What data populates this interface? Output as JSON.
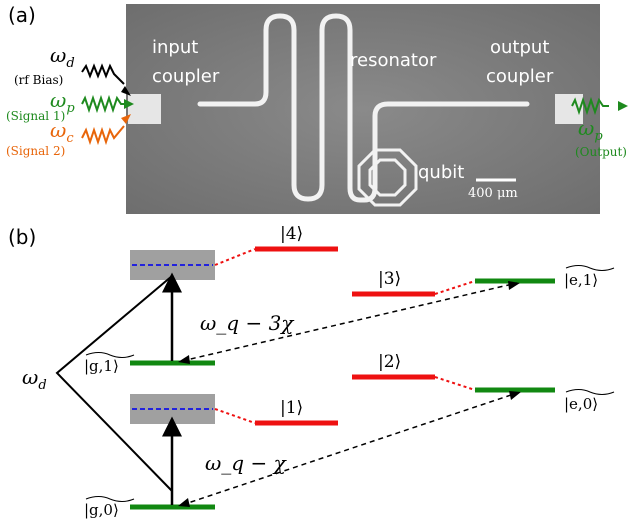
{
  "panel_a": {
    "label": "(a)",
    "chip_labels": {
      "input_coupler_line1": "input",
      "input_coupler_line2": "coupler",
      "resonator": "resonator",
      "output_coupler_line1": "output",
      "output_coupler_line2": "coupler",
      "qubit": "qubit"
    },
    "scale_bar_text": "400 μm",
    "inputs": [
      {
        "symbol": "ω",
        "subscript": "d",
        "description": "(rf Bias)",
        "color": "#000000"
      },
      {
        "symbol": "ω",
        "subscript": "p",
        "description": "(Signal 1)",
        "color": "#1e8a1e"
      },
      {
        "symbol": "ω",
        "subscript": "c",
        "description": "(Signal 2)",
        "color": "#e8650a"
      }
    ],
    "output": {
      "symbol": "ω",
      "subscript": "p",
      "description": "(Output)",
      "color": "#1e8a1e"
    }
  },
  "panel_b": {
    "label": "(b)",
    "drive_symbol": "ω",
    "drive_subscript": "d",
    "level_labels": {
      "g1": "|g,1⟩",
      "g0": "|g,0⟩",
      "e1": "|e,1⟩",
      "e0": "|e,0⟩",
      "s1": "|1⟩",
      "s2": "|2⟩",
      "s3": "|3⟩",
      "s4": "|4⟩"
    },
    "transition_upper": "ω_q − 3χ",
    "transition_lower": "ω_q − χ",
    "colors": {
      "red": "#ee1111",
      "green": "#118811",
      "gray": "#a0a0a0",
      "blue": "#2222dd"
    }
  }
}
